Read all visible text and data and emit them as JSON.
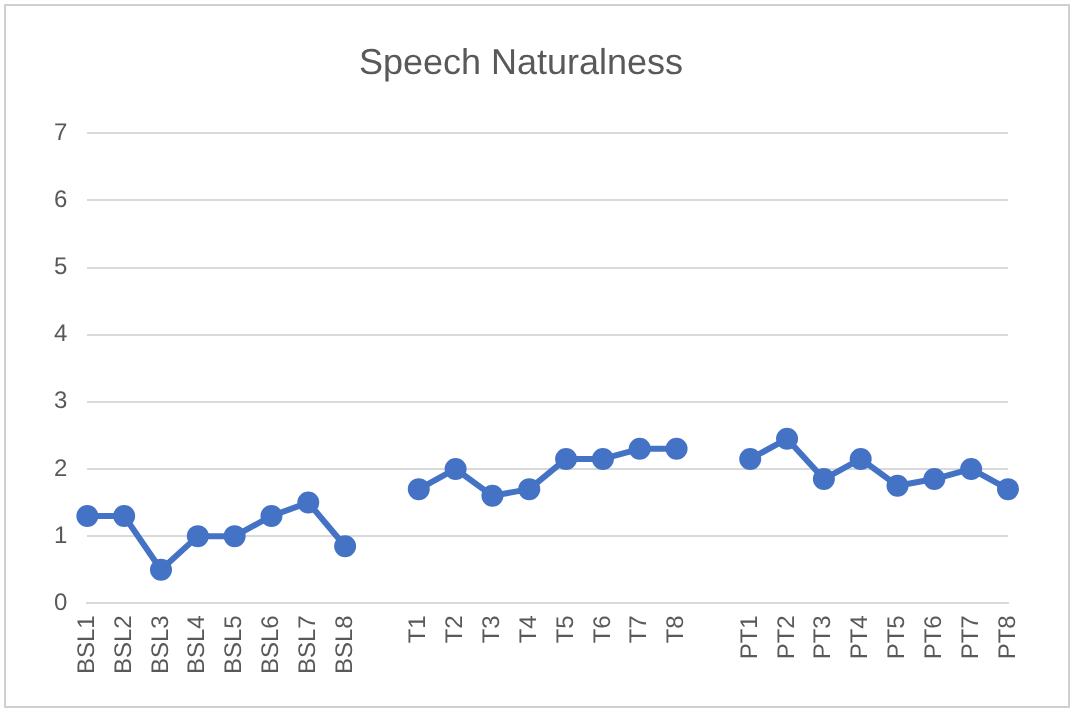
{
  "chart_data": {
    "type": "line",
    "title": "Speech Naturalness",
    "categories": [
      "BSL1",
      "BSL2",
      "BSL3",
      "BSL4",
      "BSL5",
      "BSL6",
      "BSL7",
      "BSL8",
      null,
      "T1",
      "T2",
      "T3",
      "T4",
      "T5",
      "T6",
      "T7",
      "T8",
      null,
      "PT1",
      "PT2",
      "PT3",
      "PT4",
      "PT5",
      "PT6",
      "PT7",
      "PT8"
    ],
    "series": [
      {
        "color": "#4472c4",
        "values": [
          1.3,
          1.3,
          0.5,
          1,
          1,
          1.3,
          1.5,
          0.85,
          null,
          1.7,
          2,
          1.6,
          1.7,
          2.15,
          2.15,
          2.3,
          2.3,
          null,
          2.15,
          2.45,
          1.85,
          2.15,
          1.75,
          1.85,
          2,
          1.7
        ]
      }
    ],
    "ylim": [
      0,
      7
    ],
    "yticks": [
      0,
      1,
      2,
      3,
      4,
      5,
      6,
      7
    ],
    "grid": "y",
    "legend": false,
    "marker": "circle",
    "line_style": "solid"
  }
}
